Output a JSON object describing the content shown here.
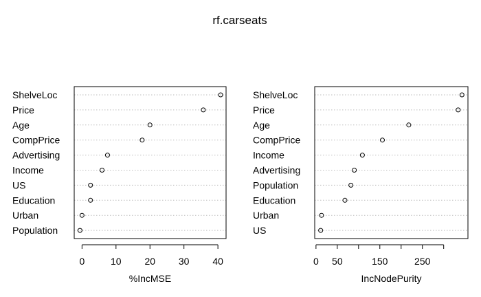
{
  "chart_data": {
    "title": "rf.carseats",
    "panels": [
      {
        "type": "dotchart",
        "xlabel": "%IncMSE",
        "xlim": [
          -2.3,
          42.4
        ],
        "ticks": [
          0,
          10,
          20,
          30,
          40
        ],
        "grid": "dotted",
        "points": [
          {
            "label": "ShelveLoc",
            "value": 40.8
          },
          {
            "label": "Price",
            "value": 35.7
          },
          {
            "label": "Age",
            "value": 20.0
          },
          {
            "label": "CompPrice",
            "value": 17.7
          },
          {
            "label": "Advertising",
            "value": 7.5
          },
          {
            "label": "Income",
            "value": 5.9
          },
          {
            "label": "US",
            "value": 2.5
          },
          {
            "label": "Education",
            "value": 2.5
          },
          {
            "label": "Urban",
            "value": 0.0
          },
          {
            "label": "Population",
            "value": -0.6
          }
        ]
      },
      {
        "type": "dotchart",
        "xlabel": "IncNodePurity",
        "xlim": [
          -3,
          357
        ],
        "ticks": [
          0,
          50,
          150,
          250
        ],
        "grid": "dotted",
        "points": [
          {
            "label": "ShelveLoc",
            "value": 343
          },
          {
            "label": "Price",
            "value": 334
          },
          {
            "label": "Age",
            "value": 218
          },
          {
            "label": "CompPrice",
            "value": 156
          },
          {
            "label": "Income",
            "value": 109
          },
          {
            "label": "Advertising",
            "value": 90
          },
          {
            "label": "Population",
            "value": 82
          },
          {
            "label": "Education",
            "value": 68
          },
          {
            "label": "Urban",
            "value": 13
          },
          {
            "label": "US",
            "value": 11
          }
        ]
      }
    ]
  }
}
